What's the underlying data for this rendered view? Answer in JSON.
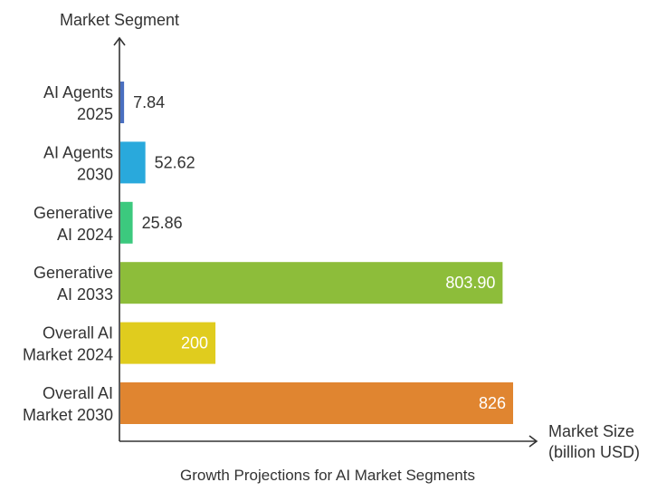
{
  "chart_data": {
    "type": "bar",
    "orientation": "horizontal",
    "title": "Growth Projections for AI Market Segments",
    "ylabel": "Market Segment",
    "xlabel": [
      "Market Size",
      "(billion USD)"
    ],
    "categories": [
      [
        "AI Agents",
        "2025"
      ],
      [
        "AI Agents",
        "2030"
      ],
      [
        "Generative",
        "AI 2024"
      ],
      [
        "Generative",
        "AI 2033"
      ],
      [
        "Overall AI",
        "Market 2024"
      ],
      [
        "Overall AI",
        "Market 2030"
      ]
    ],
    "values": [
      7.84,
      52.62,
      25.86,
      803.9,
      200,
      826
    ],
    "value_labels": [
      "7.84",
      "52.62",
      "25.86",
      "803.90",
      "200",
      "826"
    ],
    "colors": [
      "#4a6fc0",
      "#29a9dc",
      "#3cc97e",
      "#8dbd3a",
      "#e0cc1e",
      "#e08530"
    ],
    "xlim": [
      0,
      826
    ],
    "grid": false,
    "legend": "none"
  }
}
